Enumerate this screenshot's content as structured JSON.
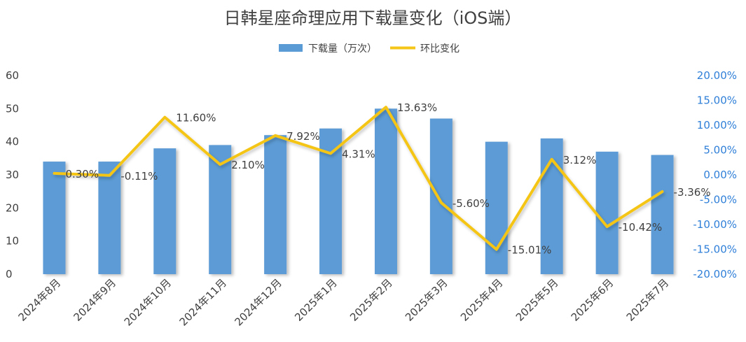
{
  "chart_data": {
    "type": "bar",
    "title": "日韩星座命理应用下载量变化（iOS端）",
    "categories": [
      "2024年8月",
      "2024年9月",
      "2024年10月",
      "2024年11月",
      "2024年12月",
      "2025年1月",
      "2025年2月",
      "2025年3月",
      "2025年4月",
      "2025年5月",
      "2025年6月",
      "2025年7月"
    ],
    "series": [
      {
        "name": "下载量（万次）",
        "type": "bar",
        "axis": "left",
        "color": "#5b9bd5",
        "values": [
          34,
          34,
          38,
          39,
          42,
          44,
          50,
          47,
          40,
          41,
          37,
          36
        ]
      },
      {
        "name": "环比变化",
        "type": "line",
        "axis": "right",
        "color": "#f5c518",
        "values": [
          0.3,
          -0.11,
          11.6,
          2.1,
          7.92,
          4.31,
          13.63,
          -5.6,
          -15.01,
          3.12,
          -10.42,
          -3.36
        ],
        "labels": [
          "0.30%",
          "-0.11%",
          "11.60%",
          "2.10%",
          "7.92%",
          "4.31%",
          "13.63%",
          "-5.60%",
          "-15.01%",
          "3.12%",
          "-10.42%",
          "-3.36%"
        ]
      }
    ],
    "y_left": {
      "ylim": [
        0,
        60
      ],
      "ticks": [
        "0",
        "10",
        "20",
        "30",
        "40",
        "50",
        "60"
      ]
    },
    "y_right": {
      "ylim": [
        -20,
        20
      ],
      "ticks": [
        "-20.00%",
        "-15.00%",
        "-10.00%",
        "-5.00%",
        "0.00%",
        "5.00%",
        "10.00%",
        "15.00%",
        "20.00%"
      ]
    },
    "legend_position": "top-center",
    "grid": false
  },
  "colors": {
    "right_axis_text": "#2f7fd8",
    "text": "#404040"
  }
}
